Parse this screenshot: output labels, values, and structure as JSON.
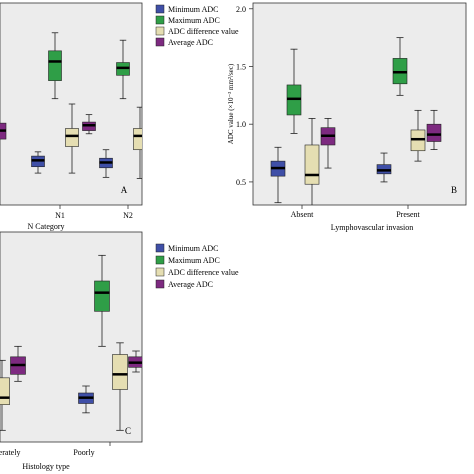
{
  "legend_items": [
    {
      "label": "Minimum ADC",
      "color": "#3f4fa7"
    },
    {
      "label": "Maximum ADC",
      "color": "#2f9e47"
    },
    {
      "label": "ADC difference value",
      "color": "#e5deb2"
    },
    {
      "label": "Average ADC",
      "color": "#7d2a80"
    }
  ],
  "chart_data": [
    {
      "type": "box",
      "panel_letter": "A",
      "xlabel": "N Category",
      "ylabel": "",
      "ylim": [
        0.2,
        2.1
      ],
      "categories": [
        "",
        "N1",
        "N2"
      ],
      "legend_placement": "top-right",
      "series": [
        {
          "name": "Minimum ADC",
          "color": "#3f4fa7",
          "boxes": [
            null,
            {
              "min": 0.5,
              "q1": 0.56,
              "median": 0.62,
              "q3": 0.66,
              "max": 0.7
            },
            {
              "min": 0.46,
              "q1": 0.55,
              "median": 0.6,
              "q3": 0.64,
              "max": 0.72
            }
          ]
        },
        {
          "name": "Maximum ADC",
          "color": "#2f9e47",
          "boxes": [
            null,
            {
              "min": 1.2,
              "q1": 1.37,
              "median": 1.55,
              "q3": 1.65,
              "max": 1.82
            },
            {
              "min": 1.2,
              "q1": 1.42,
              "median": 1.49,
              "q3": 1.54,
              "max": 1.75
            }
          ]
        },
        {
          "name": "ADC difference value",
          "color": "#e5deb2",
          "boxes": [
            null,
            {
              "min": 0.5,
              "q1": 0.75,
              "median": 0.85,
              "q3": 0.92,
              "max": 1.15
            },
            {
              "min": 0.45,
              "q1": 0.72,
              "median": 0.85,
              "q3": 0.92,
              "max": 1.12
            }
          ]
        },
        {
          "name": "Average ADC",
          "color": "#7d2a80",
          "boxes": [
            null,
            {
              "min": 0.87,
              "q1": 0.9,
              "median": 0.95,
              "q3": 0.98,
              "max": 1.05
            },
            {
              "min": 0.8,
              "q1": 0.85,
              "median": 0.89,
              "q3": 0.94,
              "max": 1.0
            }
          ]
        }
      ],
      "partial_left_marks": [
        {
          "series": "Average ADC",
          "q1": 0.82,
          "median": 0.9,
          "q3": 0.97
        }
      ]
    },
    {
      "type": "box",
      "panel_letter": "B",
      "xlabel": "Lymphovascular invasion",
      "ylabel": "ADC value (×10⁻³ mm²/sec)",
      "ylim": [
        0.3,
        2.05
      ],
      "yticks": [
        0.5,
        1.0,
        1.5,
        2.0
      ],
      "ytick_labels": [
        "0.5",
        "1.0",
        "1.5",
        "2.0"
      ],
      "categories": [
        "Absent",
        "Present"
      ],
      "series": [
        {
          "name": "Minimum ADC",
          "color": "#3f4fa7",
          "boxes": [
            {
              "min": 0.32,
              "q1": 0.55,
              "median": 0.62,
              "q3": 0.68,
              "max": 0.8
            },
            {
              "min": 0.5,
              "q1": 0.57,
              "median": 0.6,
              "q3": 0.65,
              "max": 0.75
            }
          ]
        },
        {
          "name": "Maximum ADC",
          "color": "#2f9e47",
          "boxes": [
            {
              "min": 0.92,
              "q1": 1.08,
              "median": 1.22,
              "q3": 1.34,
              "max": 1.65
            },
            {
              "min": 1.25,
              "q1": 1.35,
              "median": 1.45,
              "q3": 1.57,
              "max": 1.75
            }
          ]
        },
        {
          "name": "ADC difference value",
          "color": "#e5deb2",
          "boxes": [
            {
              "min": 0.28,
              "q1": 0.48,
              "median": 0.56,
              "q3": 0.82,
              "max": 1.05
            },
            {
              "min": 0.68,
              "q1": 0.77,
              "median": 0.87,
              "q3": 0.95,
              "max": 1.12
            }
          ]
        },
        {
          "name": "Average ADC",
          "color": "#7d2a80",
          "boxes": [
            {
              "min": 0.62,
              "q1": 0.82,
              "median": 0.9,
              "q3": 0.97,
              "max": 1.05
            },
            {
              "min": 0.78,
              "q1": 0.85,
              "median": 0.91,
              "q3": 1.0,
              "max": 1.12
            }
          ]
        }
      ]
    },
    {
      "type": "box",
      "panel_letter": "C",
      "xlabel": "Histology type",
      "ylabel": "",
      "ylim": [
        0.3,
        2.1
      ],
      "categories": [
        "Moderately",
        "Poorly"
      ],
      "legend_placement": "top-right",
      "series": [
        {
          "name": "Minimum ADC",
          "color": "#3f4fa7",
          "boxes": [
            null,
            {
              "min": 0.55,
              "q1": 0.63,
              "median": 0.68,
              "q3": 0.72,
              "max": 0.78
            }
          ]
        },
        {
          "name": "Maximum ADC",
          "color": "#2f9e47",
          "boxes": [
            null,
            {
              "min": 1.12,
              "q1": 1.42,
              "median": 1.58,
              "q3": 1.68,
              "max": 1.9
            }
          ]
        },
        {
          "name": "ADC difference value",
          "color": "#e5deb2",
          "boxes": [
            {
              "min": 0.4,
              "q1": 0.62,
              "median": 0.68,
              "q3": 0.85,
              "max": 1.0
            },
            {
              "min": 0.4,
              "q1": 0.75,
              "median": 0.88,
              "q3": 1.05,
              "max": 1.15
            }
          ]
        },
        {
          "name": "Average ADC",
          "color": "#7d2a80",
          "boxes": [
            {
              "min": 0.82,
              "q1": 0.88,
              "median": 0.96,
              "q3": 1.03,
              "max": 1.12
            },
            {
              "min": 0.9,
              "q1": 0.94,
              "median": 0.98,
              "q3": 1.03,
              "max": 1.08
            }
          ]
        }
      ]
    }
  ]
}
